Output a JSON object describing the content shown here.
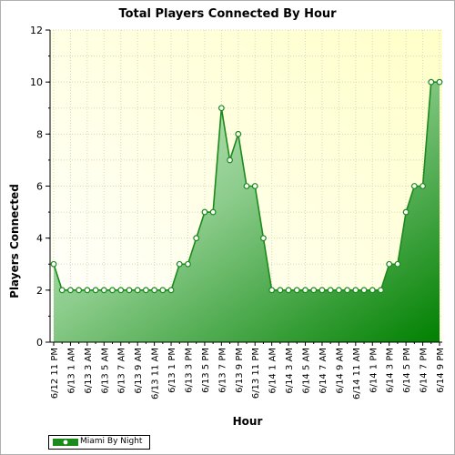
{
  "chart_data": {
    "type": "area",
    "title": "Total Players Connected By Hour",
    "xlabel": "Hour",
    "ylabel": "Players Connected",
    "ylim": [
      0,
      12
    ],
    "yticks": [
      0,
      2,
      4,
      6,
      8,
      10,
      12
    ],
    "grid": true,
    "legend_position": "bottom-left",
    "series": [
      {
        "name": "Miami By Night",
        "color": "#1a8a1a",
        "values": [
          3,
          2,
          2,
          2,
          2,
          2,
          2,
          2,
          2,
          2,
          2,
          2,
          2,
          2,
          2,
          3,
          3,
          4,
          5,
          5,
          9,
          7,
          8,
          6,
          6,
          4,
          2,
          2,
          2,
          2,
          2,
          2,
          2,
          2,
          2,
          2,
          2,
          2,
          2,
          2,
          3,
          3,
          5,
          6,
          6,
          10,
          10
        ]
      }
    ],
    "x_tick_labels": [
      "6/12 11 PM",
      "6/13 1 AM",
      "6/13 3 AM",
      "6/13 5 AM",
      "6/13 7 AM",
      "6/13 9 AM",
      "6/13 11 AM",
      "6/13 1 PM",
      "6/13 3 PM",
      "6/13 5 PM",
      "6/13 7 PM",
      "6/13 9 PM",
      "6/13 11 PM",
      "6/14 1 AM",
      "6/14 3 AM",
      "6/14 5 AM",
      "6/14 7 AM",
      "6/14 9 AM",
      "6/14 11 AM",
      "6/14 1 PM",
      "6/14 3 PM",
      "6/14 5 PM",
      "6/14 7 PM",
      "6/14 9 PM"
    ]
  }
}
